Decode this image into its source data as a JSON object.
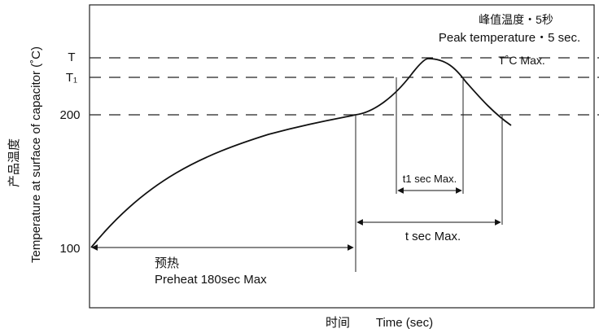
{
  "chart_data": {
    "type": "line",
    "ylabel_cn": "产品温度",
    "ylabel_en": "Temperature at surface of capacitor (˚C)",
    "xlabel_cn": "时间",
    "xlabel_en": "Time (sec)",
    "y_ticks": [
      {
        "label": "100",
        "value": 100
      },
      {
        "label": "200",
        "value": 200
      },
      {
        "label": "T₁",
        "value": "T1"
      },
      {
        "label": "T",
        "value": "T"
      }
    ],
    "reference_lines": [
      {
        "level": "T",
        "annotation": "T˚C Max."
      },
      {
        "level": "T1",
        "annotation": ""
      },
      {
        "level": "200",
        "annotation": ""
      }
    ],
    "annotations": {
      "peak_cn": "峰值温度・5秒",
      "peak_en": "Peak temperature・5 sec.",
      "tmax": "T˚C Max.",
      "t1_span": "t1 sec Max.",
      "t_span": "t sec Max.",
      "preheat_cn": "预热",
      "preheat_en": "Preheat 180sec Max"
    },
    "series": [
      {
        "values": [
          {
            "x": 0,
            "y": 100
          },
          {
            "x": 180,
            "y": 200
          },
          {
            "x": "t_peak",
            "y": "T"
          },
          {
            "x": "t_end",
            "y": "below 200"
          }
        ]
      }
    ],
    "grid": false,
    "legend": "none"
  }
}
